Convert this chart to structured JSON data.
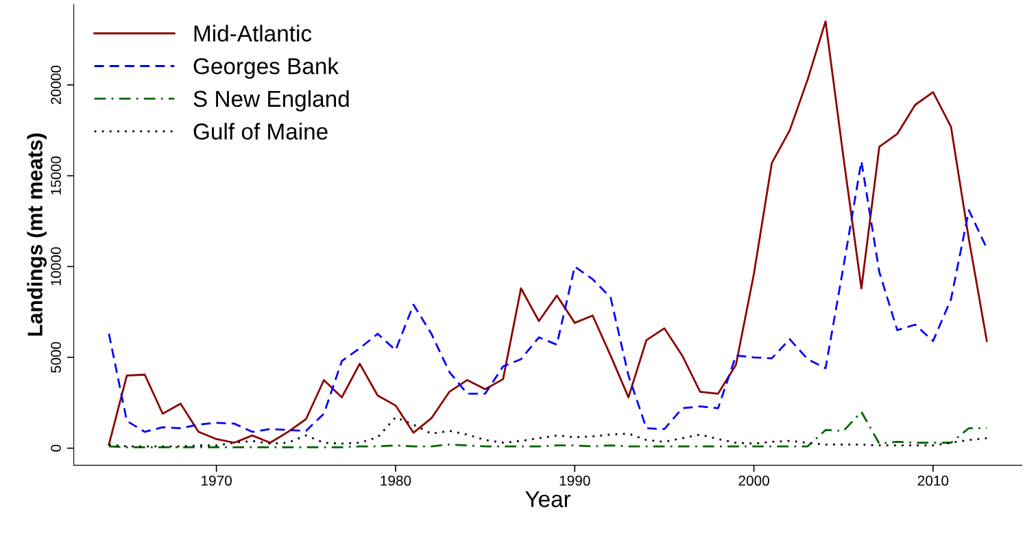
{
  "chart_data": {
    "type": "line",
    "xlabel": "Year",
    "ylabel": "Landings (mt meats)",
    "x": [
      1964,
      1965,
      1966,
      1967,
      1968,
      1969,
      1970,
      1971,
      1972,
      1973,
      1974,
      1975,
      1976,
      1977,
      1978,
      1979,
      1980,
      1981,
      1982,
      1983,
      1984,
      1985,
      1986,
      1987,
      1988,
      1989,
      1990,
      1991,
      1992,
      1993,
      1994,
      1995,
      1996,
      1997,
      1998,
      1999,
      2000,
      2001,
      2002,
      2003,
      2004,
      2005,
      2006,
      2007,
      2008,
      2009,
      2010,
      2011,
      2012,
      2013
    ],
    "series": [
      {
        "name": "Mid-Atlantic",
        "color": "#8b0000",
        "line_style": "solid",
        "values": [
          200,
          4000,
          4050,
          1900,
          2450,
          900,
          500,
          300,
          700,
          300,
          900,
          1600,
          3750,
          2800,
          4650,
          2900,
          2350,
          850,
          1650,
          3100,
          3750,
          3250,
          3800,
          8800,
          7000,
          8400,
          6900,
          7300,
          5100,
          2800,
          5950,
          6600,
          5100,
          3100,
          3000,
          4600,
          9600,
          15700,
          17500,
          20300,
          23500,
          16000,
          8800,
          16600,
          17300,
          18900,
          19600,
          17700,
          11500,
          5900
        ]
      },
      {
        "name": "Georges Bank",
        "color": "#0000ff",
        "line_style": "dashed",
        "values": [
          6300,
          1500,
          900,
          1150,
          1100,
          1300,
          1400,
          1350,
          900,
          1050,
          1000,
          950,
          1900,
          4800,
          5500,
          6300,
          5400,
          7900,
          6300,
          4200,
          3000,
          3000,
          4500,
          4900,
          6100,
          5700,
          10000,
          9300,
          8300,
          4000,
          1100,
          1050,
          2200,
          2300,
          2200,
          5100,
          5000,
          4950,
          6000,
          4900,
          4400,
          10000,
          15800,
          9700,
          6500,
          6800,
          5900,
          8200,
          13100,
          11000
        ]
      },
      {
        "name": "S New England",
        "color": "#006400",
        "line_style": "dashdot",
        "values": [
          100,
          50,
          50,
          50,
          50,
          50,
          50,
          50,
          50,
          50,
          50,
          50,
          50,
          50,
          100,
          100,
          150,
          100,
          100,
          200,
          150,
          100,
          100,
          100,
          100,
          150,
          150,
          100,
          150,
          100,
          100,
          100,
          100,
          100,
          100,
          100,
          100,
          100,
          100,
          100,
          1000,
          950,
          2000,
          250,
          350,
          300,
          300,
          300,
          1100,
          1100
        ]
      },
      {
        "name": "Gulf of Maine",
        "color": "#000000",
        "line_style": "dotted",
        "values": [
          200,
          100,
          100,
          100,
          100,
          150,
          150,
          300,
          400,
          250,
          300,
          700,
          300,
          250,
          300,
          600,
          1700,
          1300,
          800,
          950,
          750,
          450,
          300,
          400,
          550,
          700,
          600,
          650,
          750,
          800,
          450,
          350,
          550,
          750,
          500,
          300,
          250,
          350,
          400,
          300,
          200,
          200,
          200,
          150,
          150,
          150,
          150,
          300,
          450,
          550
        ]
      }
    ],
    "xlim": [
      1962.04,
      2014.96
    ],
    "xticks": [
      1970,
      1980,
      1990,
      2000,
      2010
    ],
    "ylim": [
      -940,
      24440
    ],
    "yticks": [
      0,
      5000,
      10000,
      15000,
      20000
    ],
    "legend": "top left",
    "grid": false
  }
}
